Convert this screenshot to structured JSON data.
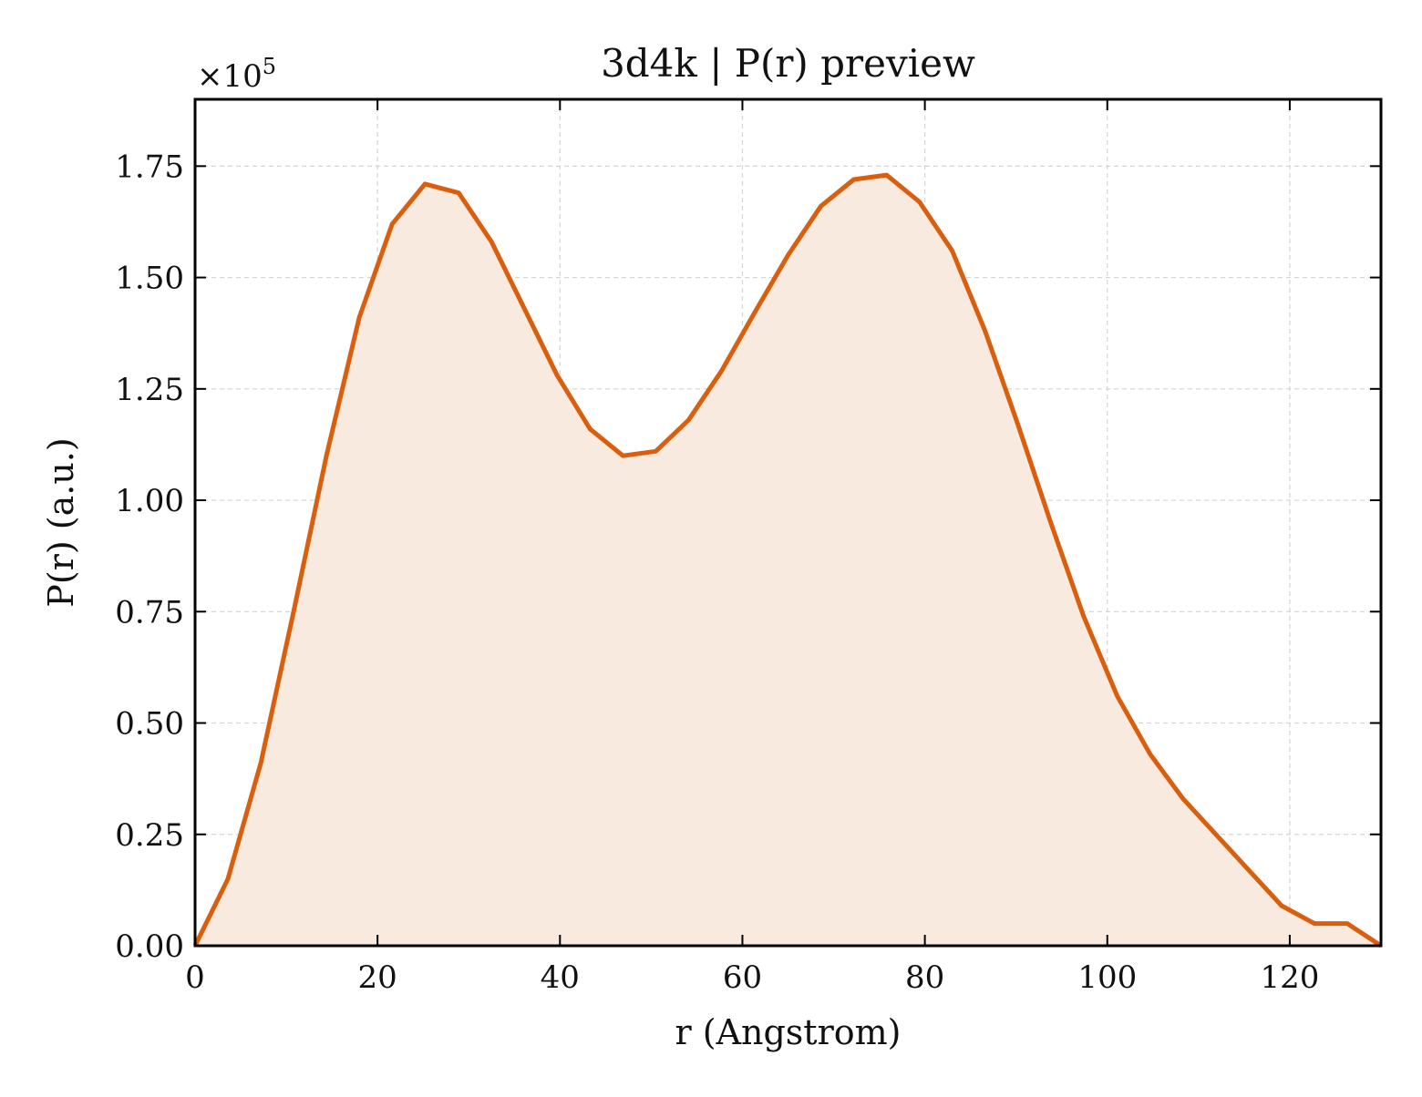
{
  "chart_data": {
    "type": "area",
    "title": "3d4k | P(r) preview",
    "xlabel": "r (Angstrom)",
    "ylabel": "P(r) (a.u.)",
    "y_multiplier_label": "×10",
    "y_multiplier_exponent": "5",
    "y_multiplier": 100000,
    "xlim": [
      0,
      130
    ],
    "ylim": [
      0,
      1.9
    ],
    "xticks": [
      0,
      20,
      40,
      60,
      80,
      100,
      120
    ],
    "xtick_labels": [
      "0",
      "20",
      "40",
      "60",
      "80",
      "100",
      "120"
    ],
    "yticks": [
      0,
      0.25,
      0.5,
      0.75,
      1.0,
      1.25,
      1.5,
      1.75
    ],
    "ytick_labels": [
      "0.00",
      "0.25",
      "0.50",
      "0.75",
      "1.00",
      "1.25",
      "1.50",
      "1.75"
    ],
    "grid": true,
    "line_color": "#d95f0e",
    "fill_color": "#f8eadf",
    "series": [
      {
        "x": [
          0,
          3.6,
          7.2,
          10.8,
          14.4,
          18.0,
          21.6,
          25.2,
          28.9,
          32.5,
          36.1,
          39.7,
          43.3,
          46.9,
          50.5,
          54.1,
          57.7,
          61.3,
          65.0,
          68.6,
          72.2,
          75.8,
          79.4,
          83.0,
          86.6,
          90.2,
          93.8,
          97.4,
          101.1,
          104.7,
          108.3,
          111.9,
          115.5,
          119.1,
          122.7,
          126.3,
          130.0
        ],
        "y": [
          0.0,
          0.15,
          0.41,
          0.75,
          1.1,
          1.41,
          1.62,
          1.71,
          1.69,
          1.58,
          1.43,
          1.28,
          1.16,
          1.1,
          1.11,
          1.18,
          1.29,
          1.42,
          1.55,
          1.66,
          1.72,
          1.73,
          1.67,
          1.56,
          1.38,
          1.17,
          0.95,
          0.74,
          0.56,
          0.43,
          0.33,
          0.25,
          0.17,
          0.09,
          0.05,
          0.05,
          0.0
        ]
      }
    ]
  }
}
